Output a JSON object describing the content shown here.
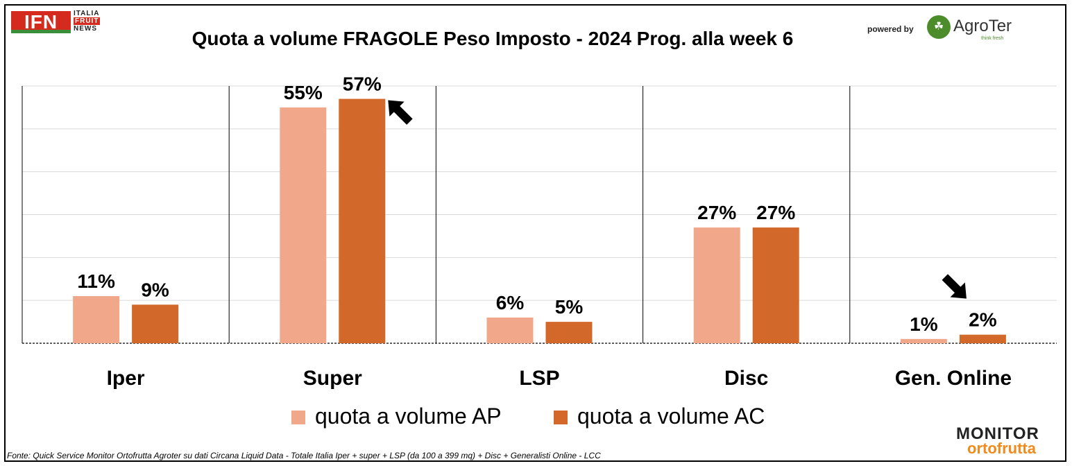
{
  "header": {
    "title": "Quota a volume FRAGOLE Peso Imposto - 2024 Prog. alla week 6",
    "powered_by": "powered by"
  },
  "logos": {
    "ifn": {
      "mark": "IFN",
      "line1": "ITALIA",
      "line2": "FRUIT",
      "line3": "NEWS"
    },
    "agroter": {
      "name": "AgroTer",
      "tagline": "think fresh",
      "icon": "tree-icon"
    },
    "monitor": {
      "line1": "MONITOR",
      "line2": "ortofrutta",
      "icon": "magnifier-icon"
    }
  },
  "footer": {
    "source": "Fonte: Quick Service Monitor Ortofrutta Agroter su dati Circana Liquid Data - Totale Italia Iper + super + LSP (da 100 a 399 mq) + Disc + Generalisti Online - LCC"
  },
  "colors": {
    "ap": "#f0a78a",
    "ac": "#d2692b",
    "ifn_red": "#d42b1e",
    "agroter_green": "#4c8c2b",
    "monitor_orange": "#f08a1c"
  },
  "chart_data": {
    "type": "bar",
    "title": "Quota a volume FRAGOLE Peso Imposto - 2024 Prog. alla week 6",
    "categories": [
      "Iper",
      "Super",
      "LSP",
      "Disc",
      "Gen. Online"
    ],
    "series": [
      {
        "name": "quota a volume AP",
        "values": [
          11,
          55,
          6,
          27,
          1
        ],
        "labels": [
          "11%",
          "55%",
          "6%",
          "27%",
          "1%"
        ],
        "color": "#f0a78a"
      },
      {
        "name": "quota a volume AC",
        "values": [
          9,
          57,
          5,
          27,
          2
        ],
        "labels": [
          "9%",
          "57%",
          "5%",
          "27%",
          "2%"
        ],
        "color": "#d2692b"
      }
    ],
    "unit": "%",
    "ylim": [
      0,
      60
    ],
    "grid": true,
    "legend_position": "bottom",
    "annotations": [
      {
        "type": "arrow",
        "direction": "up-left",
        "category": "Super",
        "series": "quota a volume AC"
      },
      {
        "type": "arrow",
        "direction": "down-right",
        "category": "Gen. Online",
        "series": "quota a volume AC"
      }
    ]
  }
}
